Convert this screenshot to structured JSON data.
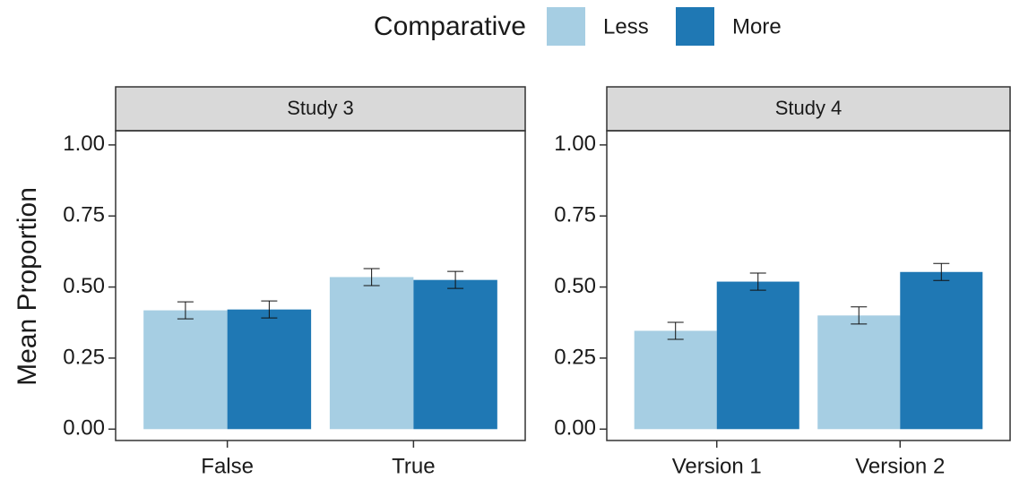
{
  "chart_data": {
    "type": "bar",
    "legend_title": "Comparative",
    "ylabel": "Mean Proportion",
    "series": [
      {
        "name": "Less",
        "color": "#a6cee3"
      },
      {
        "name": "More",
        "color": "#1f78b4"
      }
    ],
    "ylim": [
      -0.04,
      1.05
    ],
    "yticks": [
      {
        "value": 0,
        "label": "0.00"
      },
      {
        "value": 0.25,
        "label": "0.25"
      },
      {
        "value": 0.5,
        "label": "0.50"
      },
      {
        "value": 0.75,
        "label": "0.75"
      },
      {
        "value": 1,
        "label": "1.00"
      }
    ],
    "panels": [
      {
        "title": "Study 3",
        "categories": [
          "False",
          "True"
        ],
        "series": [
          {
            "values": [
              0.418,
              0.535
            ],
            "errors": [
              0.03,
              0.03
            ]
          },
          {
            "values": [
              0.421,
              0.525
            ],
            "errors": [
              0.03,
              0.03
            ]
          }
        ]
      },
      {
        "title": "Study 4",
        "categories": [
          "Version 1",
          "Version 2"
        ],
        "series": [
          {
            "values": [
              0.346,
              0.4
            ],
            "errors": [
              0.03,
              0.03
            ]
          },
          {
            "values": [
              0.519,
              0.553
            ],
            "errors": [
              0.03,
              0.03
            ]
          }
        ]
      }
    ]
  }
}
